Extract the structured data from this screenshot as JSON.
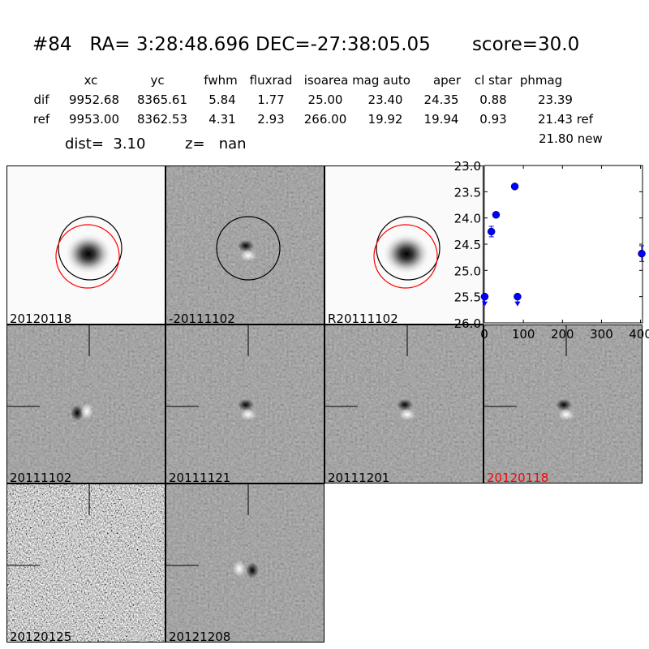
{
  "header": {
    "title": "#84   RA= 3:28:48.696 DEC=-27:38:05.05       score=30.0"
  },
  "table": {
    "columns": [
      "xc",
      "yc",
      "fwhm",
      "fluxrad",
      "isoarea",
      "mag auto",
      "aper",
      "cl star",
      "phmag"
    ],
    "rows": [
      {
        "label": "dif",
        "values": [
          "9952.68",
          "8365.61",
          "5.84",
          "1.77",
          "25.00",
          "23.40",
          "24.35",
          "0.88",
          "23.39"
        ]
      },
      {
        "label": "ref",
        "values": [
          "9953.00",
          "8362.53",
          "4.31",
          "2.93",
          "266.00",
          "19.92",
          "19.94",
          "0.93",
          "21.43 ref"
        ]
      }
    ],
    "extra": "21.80 new",
    "dist": "dist=  3.10",
    "z": "z=   nan"
  },
  "stamps": [
    {
      "label": "20120118",
      "kind": "ref-star",
      "circles": [
        "#000000",
        "#ff0000"
      ]
    },
    {
      "label": "-20111102",
      "kind": "diff",
      "circles": [
        "#000000"
      ]
    },
    {
      "label": "R20111102",
      "kind": "ref-star",
      "circles": [
        "#000000",
        "#ff0000"
      ]
    },
    {
      "label": "20111102",
      "kind": "diff"
    },
    {
      "label": "20111121",
      "kind": "diff"
    },
    {
      "label": "20111201",
      "kind": "diff"
    },
    {
      "label": "20120118",
      "kind": "diff",
      "label_color": "#ff0000"
    },
    {
      "label": "20120125",
      "kind": "noise"
    },
    {
      "label": "20121208",
      "kind": "diff"
    }
  ],
  "chart_data": {
    "type": "scatter",
    "title": "",
    "xlabel": "",
    "ylabel": "",
    "xlim": [
      0,
      405
    ],
    "ylim": [
      26.0,
      23.0
    ],
    "y_inverted": true,
    "xticks": [
      "0",
      "100",
      "200",
      "300",
      "400"
    ],
    "yticks": [
      "23.0",
      "23.5",
      "24.0",
      "24.5",
      "25.0",
      "25.5",
      "26.0"
    ],
    "color": "#0000ff",
    "points": [
      {
        "x": 1,
        "y": 25.5,
        "err": 0,
        "upper_limit": true
      },
      {
        "x": 18,
        "y": 24.26,
        "err": 0.1,
        "upper_limit": false
      },
      {
        "x": 30,
        "y": 23.94,
        "err": 0.05,
        "upper_limit": false
      },
      {
        "x": 78,
        "y": 23.4,
        "err": 0.02,
        "upper_limit": false
      },
      {
        "x": 85,
        "y": 25.5,
        "err": 0,
        "upper_limit": true
      },
      {
        "x": 403,
        "y": 24.68,
        "err": 0.15,
        "upper_limit": false
      }
    ]
  }
}
